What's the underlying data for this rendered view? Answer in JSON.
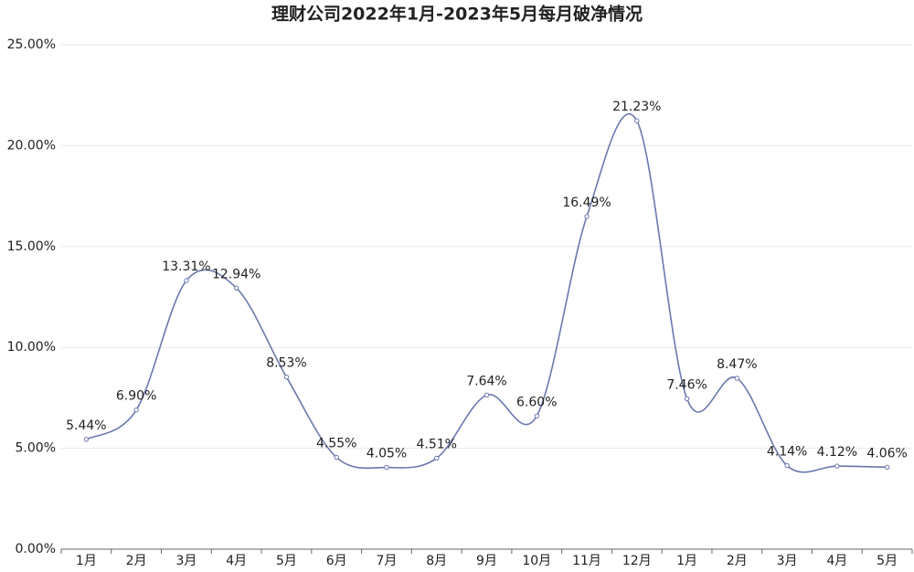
{
  "chart_data": {
    "type": "line",
    "title": "理财公司2022年1月-2023年5月每月破净情况",
    "categories": [
      "1月",
      "2月",
      "3月",
      "4月",
      "5月",
      "6月",
      "7月",
      "8月",
      "9月",
      "10月",
      "11月",
      "12月",
      "1月",
      "2月",
      "3月",
      "4月",
      "5月"
    ],
    "series": [
      {
        "name": null,
        "color": "#6a78ae",
        "values": [
          5.44,
          6.9,
          13.31,
          12.94,
          8.53,
          4.55,
          4.05,
          4.51,
          7.64,
          6.6,
          16.49,
          21.23,
          7.46,
          8.47,
          4.14,
          4.12,
          4.06
        ],
        "value_labels": [
          "5.44%",
          "6.90%",
          "13.31%",
          "12.94%",
          "8.53%",
          "4.55%",
          "4.05%",
          "4.51%",
          "7.64%",
          "6.60%",
          "16.49%",
          "21.23%",
          "7.46%",
          "8.47%",
          "4.14%",
          "4.12%",
          "4.06%"
        ]
      }
    ],
    "ylim": [
      0,
      25
    ],
    "yticks": [
      {
        "value": 0,
        "label": "0.00%"
      },
      {
        "value": 5,
        "label": "5.00%"
      },
      {
        "value": 10,
        "label": "10.00%"
      },
      {
        "value": 15,
        "label": "15.00%"
      },
      {
        "value": 20,
        "label": "20.00%"
      },
      {
        "value": 25,
        "label": "25.00%"
      }
    ],
    "grid": true,
    "smooth": true
  }
}
